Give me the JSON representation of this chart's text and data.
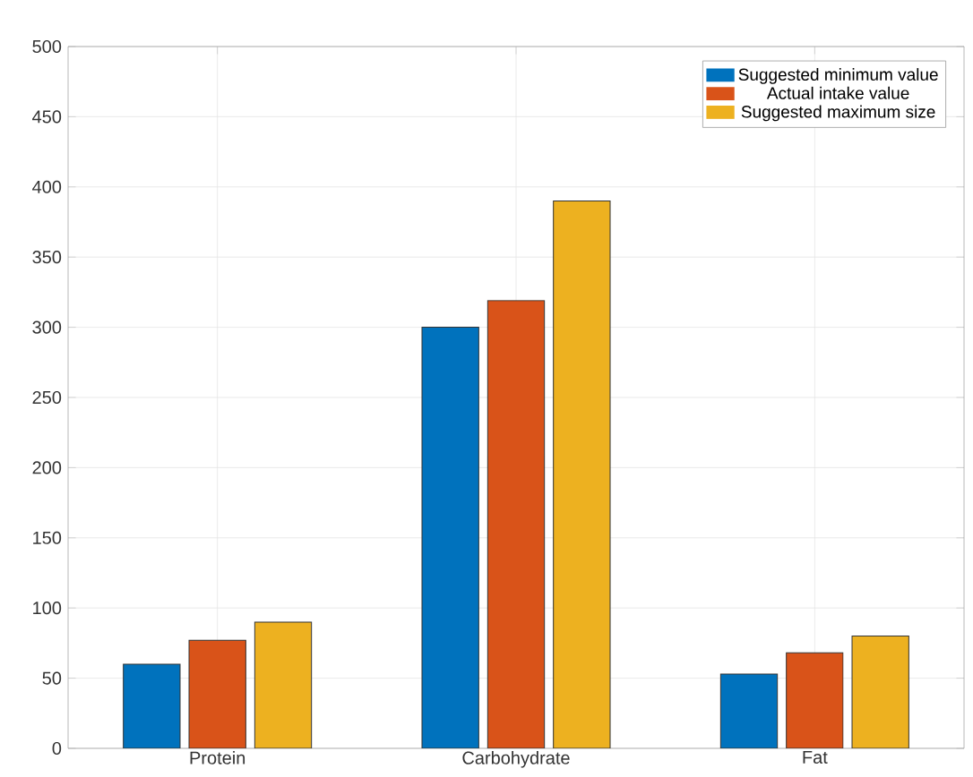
{
  "chart_data": {
    "type": "bar",
    "categories": [
      "Protein",
      "Carbohydrate",
      "Fat"
    ],
    "series": [
      {
        "name": "Suggested minimum value",
        "color": "#0072bd",
        "values": [
          60,
          300,
          53
        ]
      },
      {
        "name": "Actual intake value",
        "color": "#d95319",
        "values": [
          77,
          319,
          68
        ]
      },
      {
        "name": "Suggested maximum size",
        "color": "#edb120",
        "values": [
          90,
          390,
          80
        ]
      }
    ],
    "ylim": [
      0,
      500
    ],
    "yticks": [
      0,
      50,
      100,
      150,
      200,
      250,
      300,
      350,
      400,
      450,
      500
    ],
    "grid": true,
    "legend": "top right"
  }
}
